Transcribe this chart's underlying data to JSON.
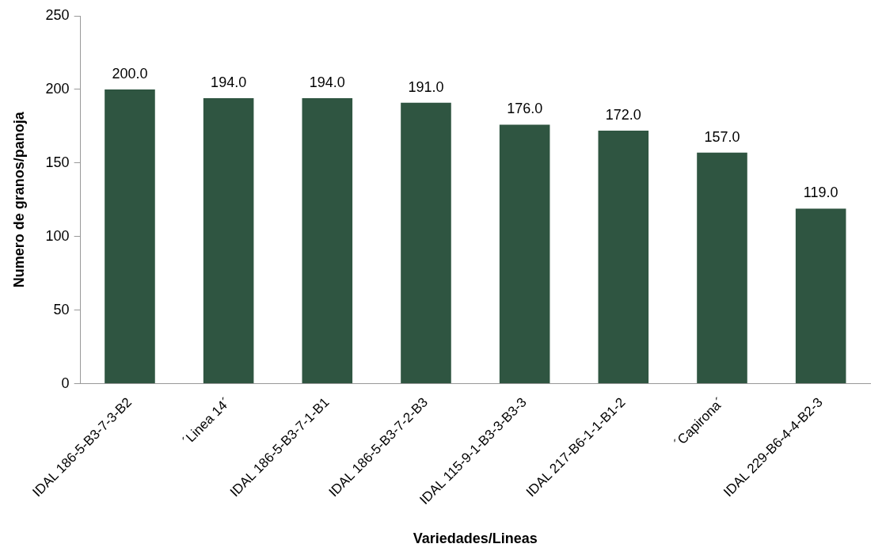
{
  "chart_data": {
    "type": "bar",
    "xlabel": "Variedades/Lineas",
    "ylabel": "Numero de granos/panoja",
    "categories": [
      "IDAL 186-5-B3-7-3-B2",
      "´Linea 14´",
      "IDAL 186-5-B3-7-1-B1",
      "IDAL 186-5-B3-7-2-B3",
      "IDAL 115-9-1-B3-3-B3-3",
      "IDAL 217-B6-1-1-B1-2",
      "´Capirona´",
      "IDAL 229-B6-4-4-B2-3"
    ],
    "values": [
      200,
      194,
      194,
      191,
      176,
      172,
      157,
      119
    ],
    "value_labels": [
      "200.0",
      "194.0",
      "194.0",
      "191.0",
      "176.0",
      "172.0",
      "157.0",
      "119.0"
    ],
    "color": "#2f5541",
    "ylim": [
      0,
      250
    ],
    "yticks": [
      0,
      50,
      100,
      150,
      200,
      250
    ],
    "grid": false,
    "legend": false
  }
}
